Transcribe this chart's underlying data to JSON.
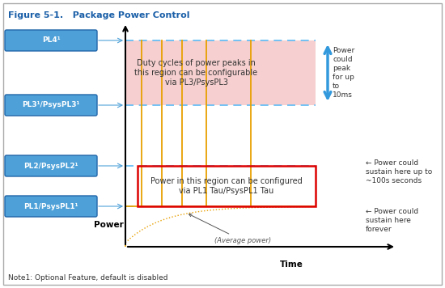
{
  "title": "Figure 5-1.   Package Power Control",
  "note": "Note1: Optional Feature, default is disabled",
  "xlabel": "Time",
  "ylabel": "Power",
  "pl_labels": [
    "PL4¹",
    "PL3¹/PsysPL3¹",
    "PL2/PsysPL2¹",
    "PL1/PsysPL1¹"
  ],
  "pl_box_facecolor": "#4da0d8",
  "pl_box_edgecolor": "#2266aa",
  "dashed_line_color": "#5bbaf5",
  "pink_region_color": "#f5c8c8",
  "pink_text": "Duty cycles of power peaks in\nthis region can be configurable\nvia PL3/PsysPL3",
  "red_text": "Power in this region can be configured\nvia PL1 Tau/PsysPL1 Tau",
  "arrow_text": "Power\ncould\npeak\nfor up\nto\n10ms",
  "right_text_top": "← Power could\nsustain here up to\n~100s seconds",
  "right_text_bot": "← Power could\nsustain here\nforever",
  "avg_label": "(Average power)",
  "spike_color": "#e8a000",
  "background": "#ffffff",
  "border_color": "#aaaaaa",
  "title_color": "#1a5fa8",
  "note_color": "#333333"
}
